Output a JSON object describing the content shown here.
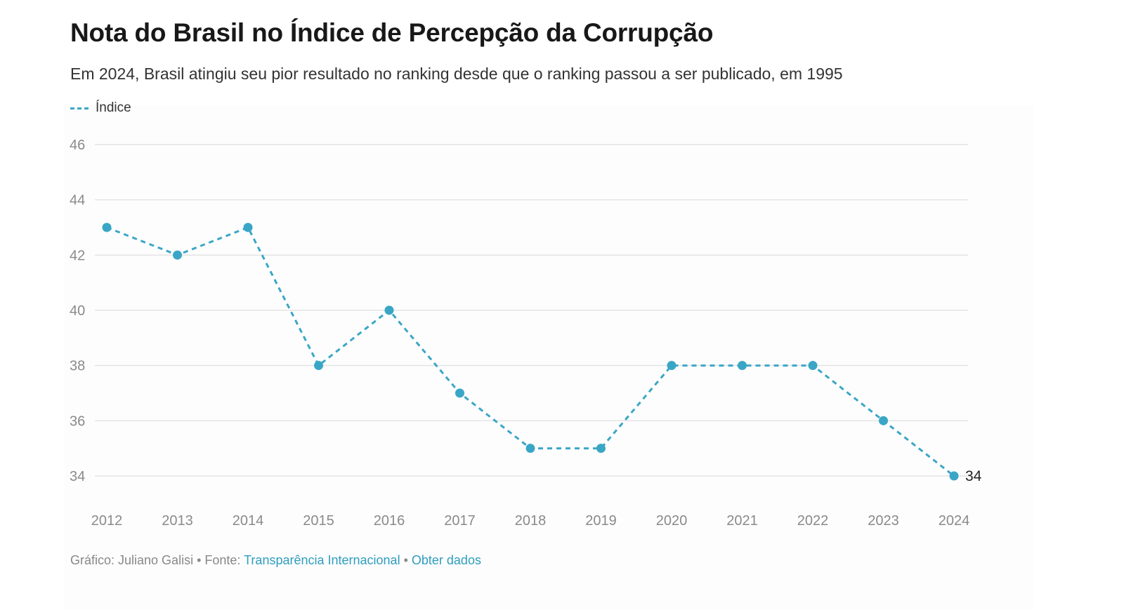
{
  "chart_data": {
    "type": "line",
    "title": "Nota do Brasil no Índice de Percepção da Corrupção",
    "subtitle": "Em 2024, Brasil atingiu seu pior resultado no ranking desde que o ranking passou a ser publicado, em 1995",
    "categories": [
      "2012",
      "2013",
      "2014",
      "2015",
      "2016",
      "2017",
      "2018",
      "2019",
      "2020",
      "2021",
      "2022",
      "2023",
      "2024"
    ],
    "series": [
      {
        "name": "Índice",
        "values": [
          43,
          42,
          43,
          38,
          40,
          37,
          35,
          35,
          38,
          38,
          38,
          36,
          34
        ],
        "color": "#3aa6c6",
        "line_style": "dashed"
      }
    ],
    "ylim": [
      34,
      46
    ],
    "yticks": [
      "34",
      "36",
      "38",
      "40",
      "42",
      "44",
      "46"
    ],
    "grid": true,
    "legend_position": "top-left",
    "data_labels": [
      {
        "category": "2024",
        "value": "34"
      }
    ]
  },
  "footer": {
    "credit": "Gráfico: Juliano Galisi",
    "separator": " • ",
    "source_prefix": "Fonte: ",
    "source_link": "Transparência Internacional",
    "get_data_link": "Obter dados"
  },
  "colors": {
    "line": "#3aa6c6",
    "grid": "#e3e3e3",
    "tick_text": "#8a8a8a",
    "link": "#2e9dbf"
  }
}
